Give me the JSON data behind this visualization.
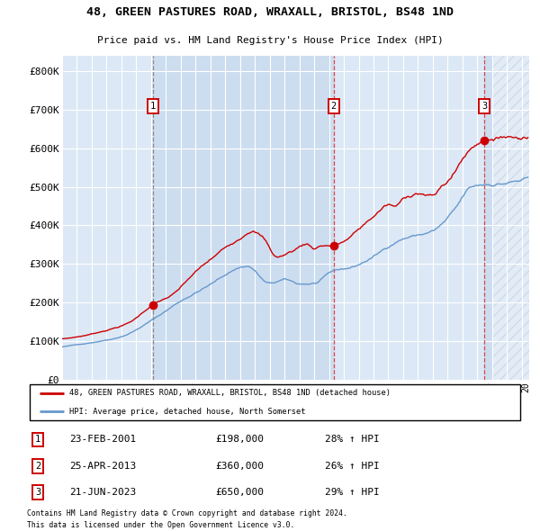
{
  "title": "48, GREEN PASTURES ROAD, WRAXALL, BRISTOL, BS48 1ND",
  "subtitle": "Price paid vs. HM Land Registry's House Price Index (HPI)",
  "legend_red": "48, GREEN PASTURES ROAD, WRAXALL, BRISTOL, BS48 1ND (detached house)",
  "legend_blue": "HPI: Average price, detached house, North Somerset",
  "footnote1": "Contains HM Land Registry data © Crown copyright and database right 2024.",
  "footnote2": "This data is licensed under the Open Government Licence v3.0.",
  "purchases": [
    {
      "num": 1,
      "date": "23-FEB-2001",
      "price": 198000,
      "pct": "28%",
      "year": 2001.12
    },
    {
      "num": 2,
      "date": "25-APR-2013",
      "price": 360000,
      "pct": "26%",
      "year": 2013.31
    },
    {
      "num": 3,
      "date": "21-JUN-2023",
      "price": 650000,
      "pct": "29%",
      "year": 2023.47
    }
  ],
  "ylim": [
    0,
    840000
  ],
  "xlim_start": 1995.0,
  "xlim_end": 2026.5,
  "yticks": [
    0,
    100000,
    200000,
    300000,
    400000,
    500000,
    600000,
    700000,
    800000
  ],
  "ytick_labels": [
    "£0",
    "£100K",
    "£200K",
    "£300K",
    "£400K",
    "£500K",
    "£600K",
    "£700K",
    "£800K"
  ],
  "xticks": [
    1995,
    1996,
    1997,
    1998,
    1999,
    2000,
    2001,
    2002,
    2003,
    2004,
    2005,
    2006,
    2007,
    2008,
    2009,
    2010,
    2011,
    2012,
    2013,
    2014,
    2015,
    2016,
    2017,
    2018,
    2019,
    2020,
    2021,
    2022,
    2023,
    2024,
    2025,
    2026
  ],
  "background_color": "#ffffff",
  "plot_bg_color": "#dce8f5",
  "plot_bg_alt": "#cdddf0",
  "grid_color": "#ffffff",
  "red_line_color": "#cc0000",
  "blue_line_color": "#6699cc",
  "purchase_marker_color": "#cc0000",
  "dashed_line_color_1": "#888888",
  "dashed_line_color_23": "#dd4444",
  "box_color": "#cc0000",
  "hatch_edgecolor": "#b0c8e0"
}
